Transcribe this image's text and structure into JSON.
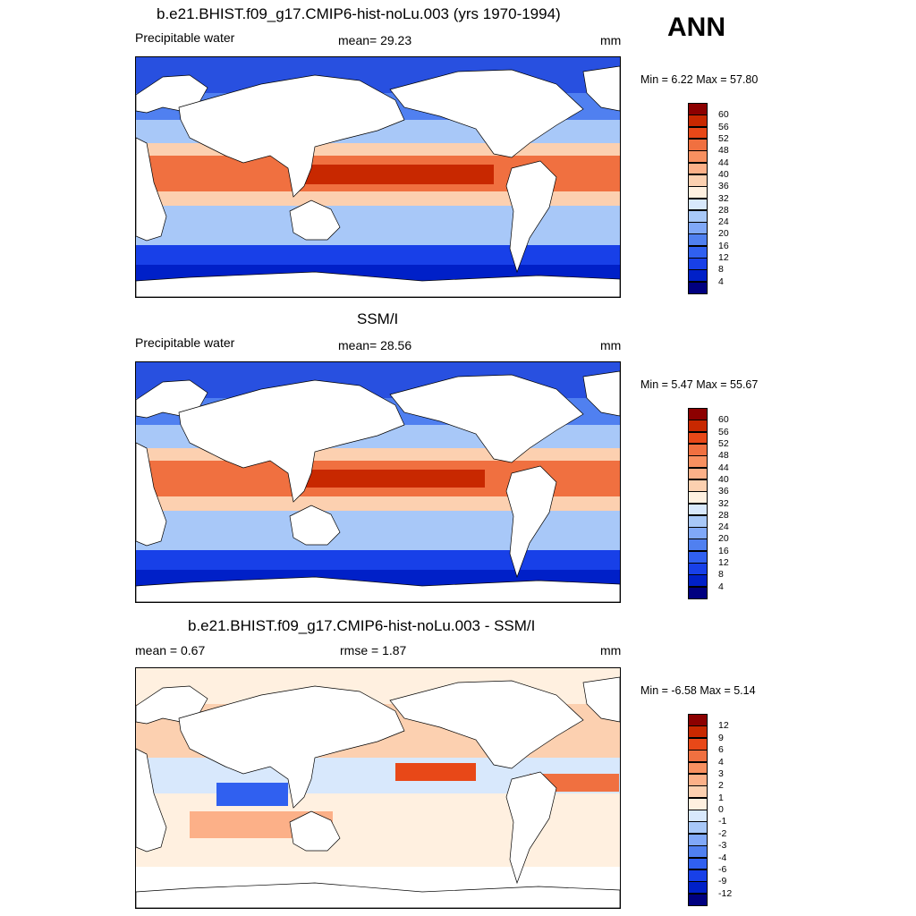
{
  "season": "ANN",
  "panels": [
    {
      "id": "model",
      "title": "b.e21.BHIST.f09_g17.CMIP6-hist-noLu.003 (yrs 1970-1994)",
      "left_label": "Precipitable water",
      "center_label": "mean=  29.23",
      "units": "mm",
      "minmax": "Min =   6.22 Max =  57.80",
      "colors": [
        "#000080",
        "#0020c8",
        "#1840e8",
        "#3060f0",
        "#5080f0",
        "#80a8f8",
        "#a8c8f8",
        "#d8e8fc",
        "#fff0e0",
        "#fcd0b0",
        "#fcb088",
        "#f89060",
        "#f07040",
        "#e84818",
        "#c82800",
        "#8c0000"
      ],
      "levels": [
        "60",
        "56",
        "52",
        "48",
        "44",
        "40",
        "36",
        "32",
        "28",
        "24",
        "20",
        "16",
        "12",
        "8",
        "4"
      ]
    },
    {
      "id": "obs",
      "title": "SSM/I",
      "left_label": "Precipitable water",
      "center_label": "mean=  28.56",
      "units": "mm",
      "minmax": "Min =   5.47 Max =  55.67",
      "colors": [
        "#000080",
        "#0020c8",
        "#1840e8",
        "#3060f0",
        "#5080f0",
        "#80a8f8",
        "#a8c8f8",
        "#d8e8fc",
        "#fff0e0",
        "#fcd0b0",
        "#fcb088",
        "#f89060",
        "#f07040",
        "#e84818",
        "#c82800",
        "#8c0000"
      ],
      "levels": [
        "60",
        "56",
        "52",
        "48",
        "44",
        "40",
        "36",
        "32",
        "28",
        "24",
        "20",
        "16",
        "12",
        "8",
        "4"
      ]
    },
    {
      "id": "diff",
      "title": "b.e21.BHIST.f09_g17.CMIP6-hist-noLu.003 - SSM/I",
      "left_label": "mean =   0.67",
      "center_label": "rmse =   1.87",
      "units": "mm",
      "minmax": "Min =  -6.58 Max =   5.14",
      "colors": [
        "#000080",
        "#0020c8",
        "#1840e8",
        "#3060f0",
        "#5080f0",
        "#80a8f8",
        "#a8c8f8",
        "#d8e8fc",
        "#fff0e0",
        "#fcd0b0",
        "#fcb088",
        "#f89060",
        "#f07040",
        "#e84818",
        "#c82800",
        "#8c0000"
      ],
      "levels": [
        "12",
        "9",
        "6",
        "4",
        "3",
        "2",
        "1",
        "0",
        "-1",
        "-2",
        "-3",
        "-4",
        "-6",
        "-9",
        "-12"
      ]
    }
  ]
}
